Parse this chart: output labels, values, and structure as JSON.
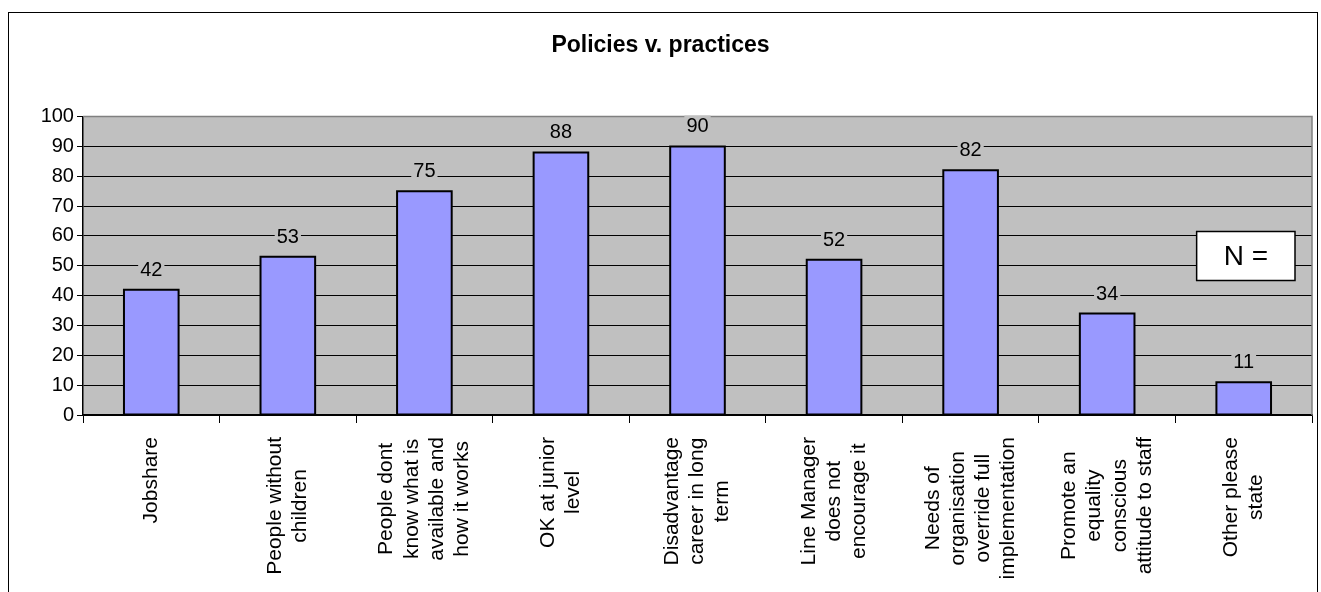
{
  "chart_data": {
    "type": "bar",
    "title": "Policies v. practices",
    "categories": [
      "Jobshare",
      "People without children",
      "People dont know what is available and how it works",
      "OK at junior level",
      "Disadvantage career in long term",
      "Line Manager does not encourage it",
      "Needs of organisation override full implementation",
      "Promote an equality conscious attitude to staff",
      "Other please state"
    ],
    "values": [
      42,
      53,
      75,
      88,
      90,
      52,
      82,
      34,
      11
    ],
    "color": "#9999ff",
    "ylim": [
      0,
      100
    ],
    "yticks": [
      0,
      10,
      20,
      30,
      40,
      50,
      60,
      70,
      80,
      90,
      100
    ],
    "grid": "y",
    "data_labels": true,
    "annotations": [
      "N ="
    ]
  }
}
